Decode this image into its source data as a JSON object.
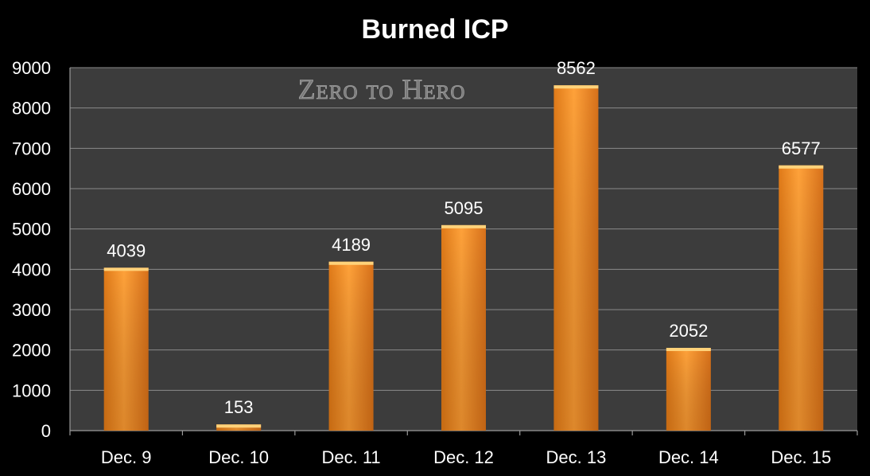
{
  "chart_data": {
    "type": "bar",
    "title": "Burned ICP",
    "watermark": "Zero to Hero",
    "categories": [
      "Dec. 9",
      "Dec. 10",
      "Dec. 11",
      "Dec. 12",
      "Dec. 13",
      "Dec. 14",
      "Dec. 15"
    ],
    "values": [
      4039,
      153,
      4189,
      5095,
      8562,
      2052,
      6577
    ],
    "ylim": [
      0,
      9000
    ],
    "yticks": [
      0,
      1000,
      2000,
      3000,
      4000,
      5000,
      6000,
      7000,
      8000,
      9000
    ],
    "xlabel": "",
    "ylabel": "",
    "grid": true,
    "data_labels": true,
    "colors": {
      "background": "#000000",
      "plot_area": "#3c3c3c",
      "bar": "#f7931e",
      "gridline": "#8a8a8a",
      "text": "#ffffff"
    }
  }
}
